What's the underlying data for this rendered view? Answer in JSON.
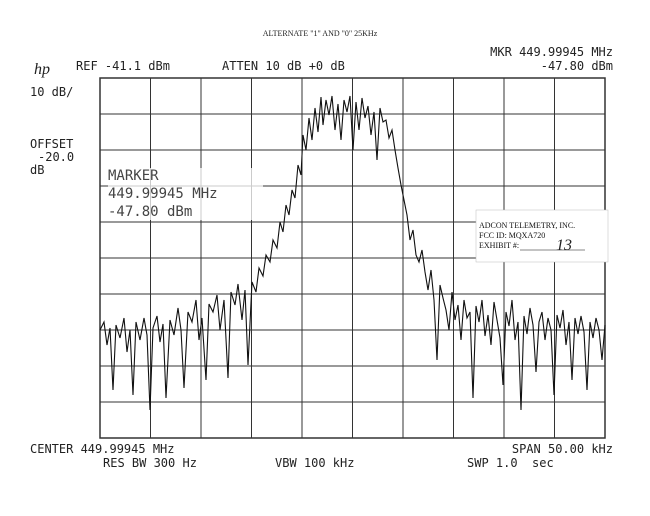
{
  "header": {
    "title": "ALTERNATE \"1\" AND \"0\" 25KHz",
    "logo": "hp",
    "ref": "REF -41.1 dBm",
    "atten": "ATTEN 10 dB +0 dB",
    "marker_freq": "MKR 449.99945 MHz",
    "marker_level": "-47.80 dBm"
  },
  "left_panel": {
    "scale": "10 dB/",
    "offset_label": "OFFSET",
    "offset_value": "-20.0",
    "offset_unit": "dB"
  },
  "marker_box": {
    "title": "MARKER",
    "freq": "449.99945 MHz",
    "level": "-47.80 dBm"
  },
  "stamp": {
    "company": "ADCON TELEMETRY, INC.",
    "fcc_id": "FCC ID:  MQXA720",
    "exhibit": "EXHIBIT #:",
    "exhibit_number": "13"
  },
  "footer": {
    "center": "CENTER 449.99945 MHz",
    "span": "SPAN 50.00 kHz",
    "res_bw": "RES BW 300 Hz",
    "vbw": "VBW 100 kHz",
    "sweep": "SWP 1.0  sec"
  }
}
